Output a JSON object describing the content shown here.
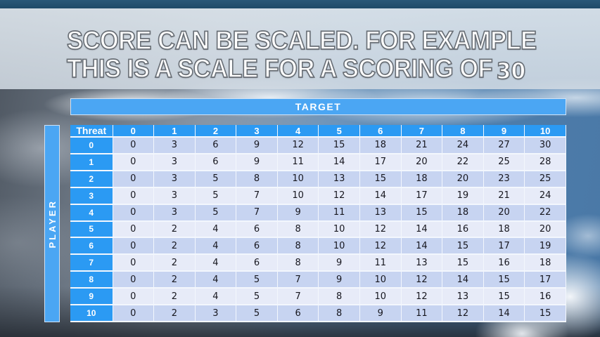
{
  "title": {
    "line1": "SCORE CAN BE SCALED. FOR EXAMPLE",
    "line2_prefix": "THIS IS A SCALE FOR A SCORING OF",
    "line2_number": "30"
  },
  "table": {
    "target_label": "TARGET",
    "player_label": "PLAYER",
    "corner_label": "Threat",
    "column_headers": [
      "0",
      "1",
      "2",
      "3",
      "4",
      "5",
      "6",
      "7",
      "8",
      "9",
      "10"
    ],
    "row_headers": [
      "0",
      "1",
      "2",
      "3",
      "4",
      "5",
      "6",
      "7",
      "8",
      "9",
      "10"
    ],
    "rows": [
      [
        0,
        3,
        6,
        9,
        12,
        15,
        18,
        21,
        24,
        27,
        30
      ],
      [
        0,
        3,
        6,
        9,
        11,
        14,
        17,
        20,
        22,
        25,
        28
      ],
      [
        0,
        3,
        5,
        8,
        10,
        13,
        15,
        18,
        20,
        23,
        25
      ],
      [
        0,
        3,
        5,
        7,
        10,
        12,
        14,
        17,
        19,
        21,
        24
      ],
      [
        0,
        3,
        5,
        7,
        9,
        11,
        13,
        15,
        18,
        20,
        22
      ],
      [
        0,
        2,
        4,
        6,
        8,
        10,
        12,
        14,
        16,
        18,
        20
      ],
      [
        0,
        2,
        4,
        6,
        8,
        10,
        12,
        14,
        15,
        17,
        19
      ],
      [
        0,
        2,
        4,
        6,
        8,
        9,
        11,
        13,
        15,
        16,
        18
      ],
      [
        0,
        2,
        4,
        5,
        7,
        9,
        10,
        12,
        14,
        15,
        17
      ],
      [
        0,
        2,
        4,
        5,
        7,
        8,
        10,
        12,
        13,
        15,
        16
      ],
      [
        0,
        2,
        3,
        5,
        6,
        8,
        9,
        11,
        12,
        14,
        15
      ]
    ]
  },
  "colors": {
    "bar_blue": "#4BA6F3",
    "header_blue": "#2B9AF3",
    "row_even": "#C7D4F1",
    "row_odd": "#E7EBF8",
    "grid_line": "#F3F7FD",
    "cell_text": "#17171F",
    "top_strip": "#1F4A68",
    "title_band": "#D8E0E8",
    "title_text": "#FFFFFF",
    "title_outline": "#686E75"
  }
}
